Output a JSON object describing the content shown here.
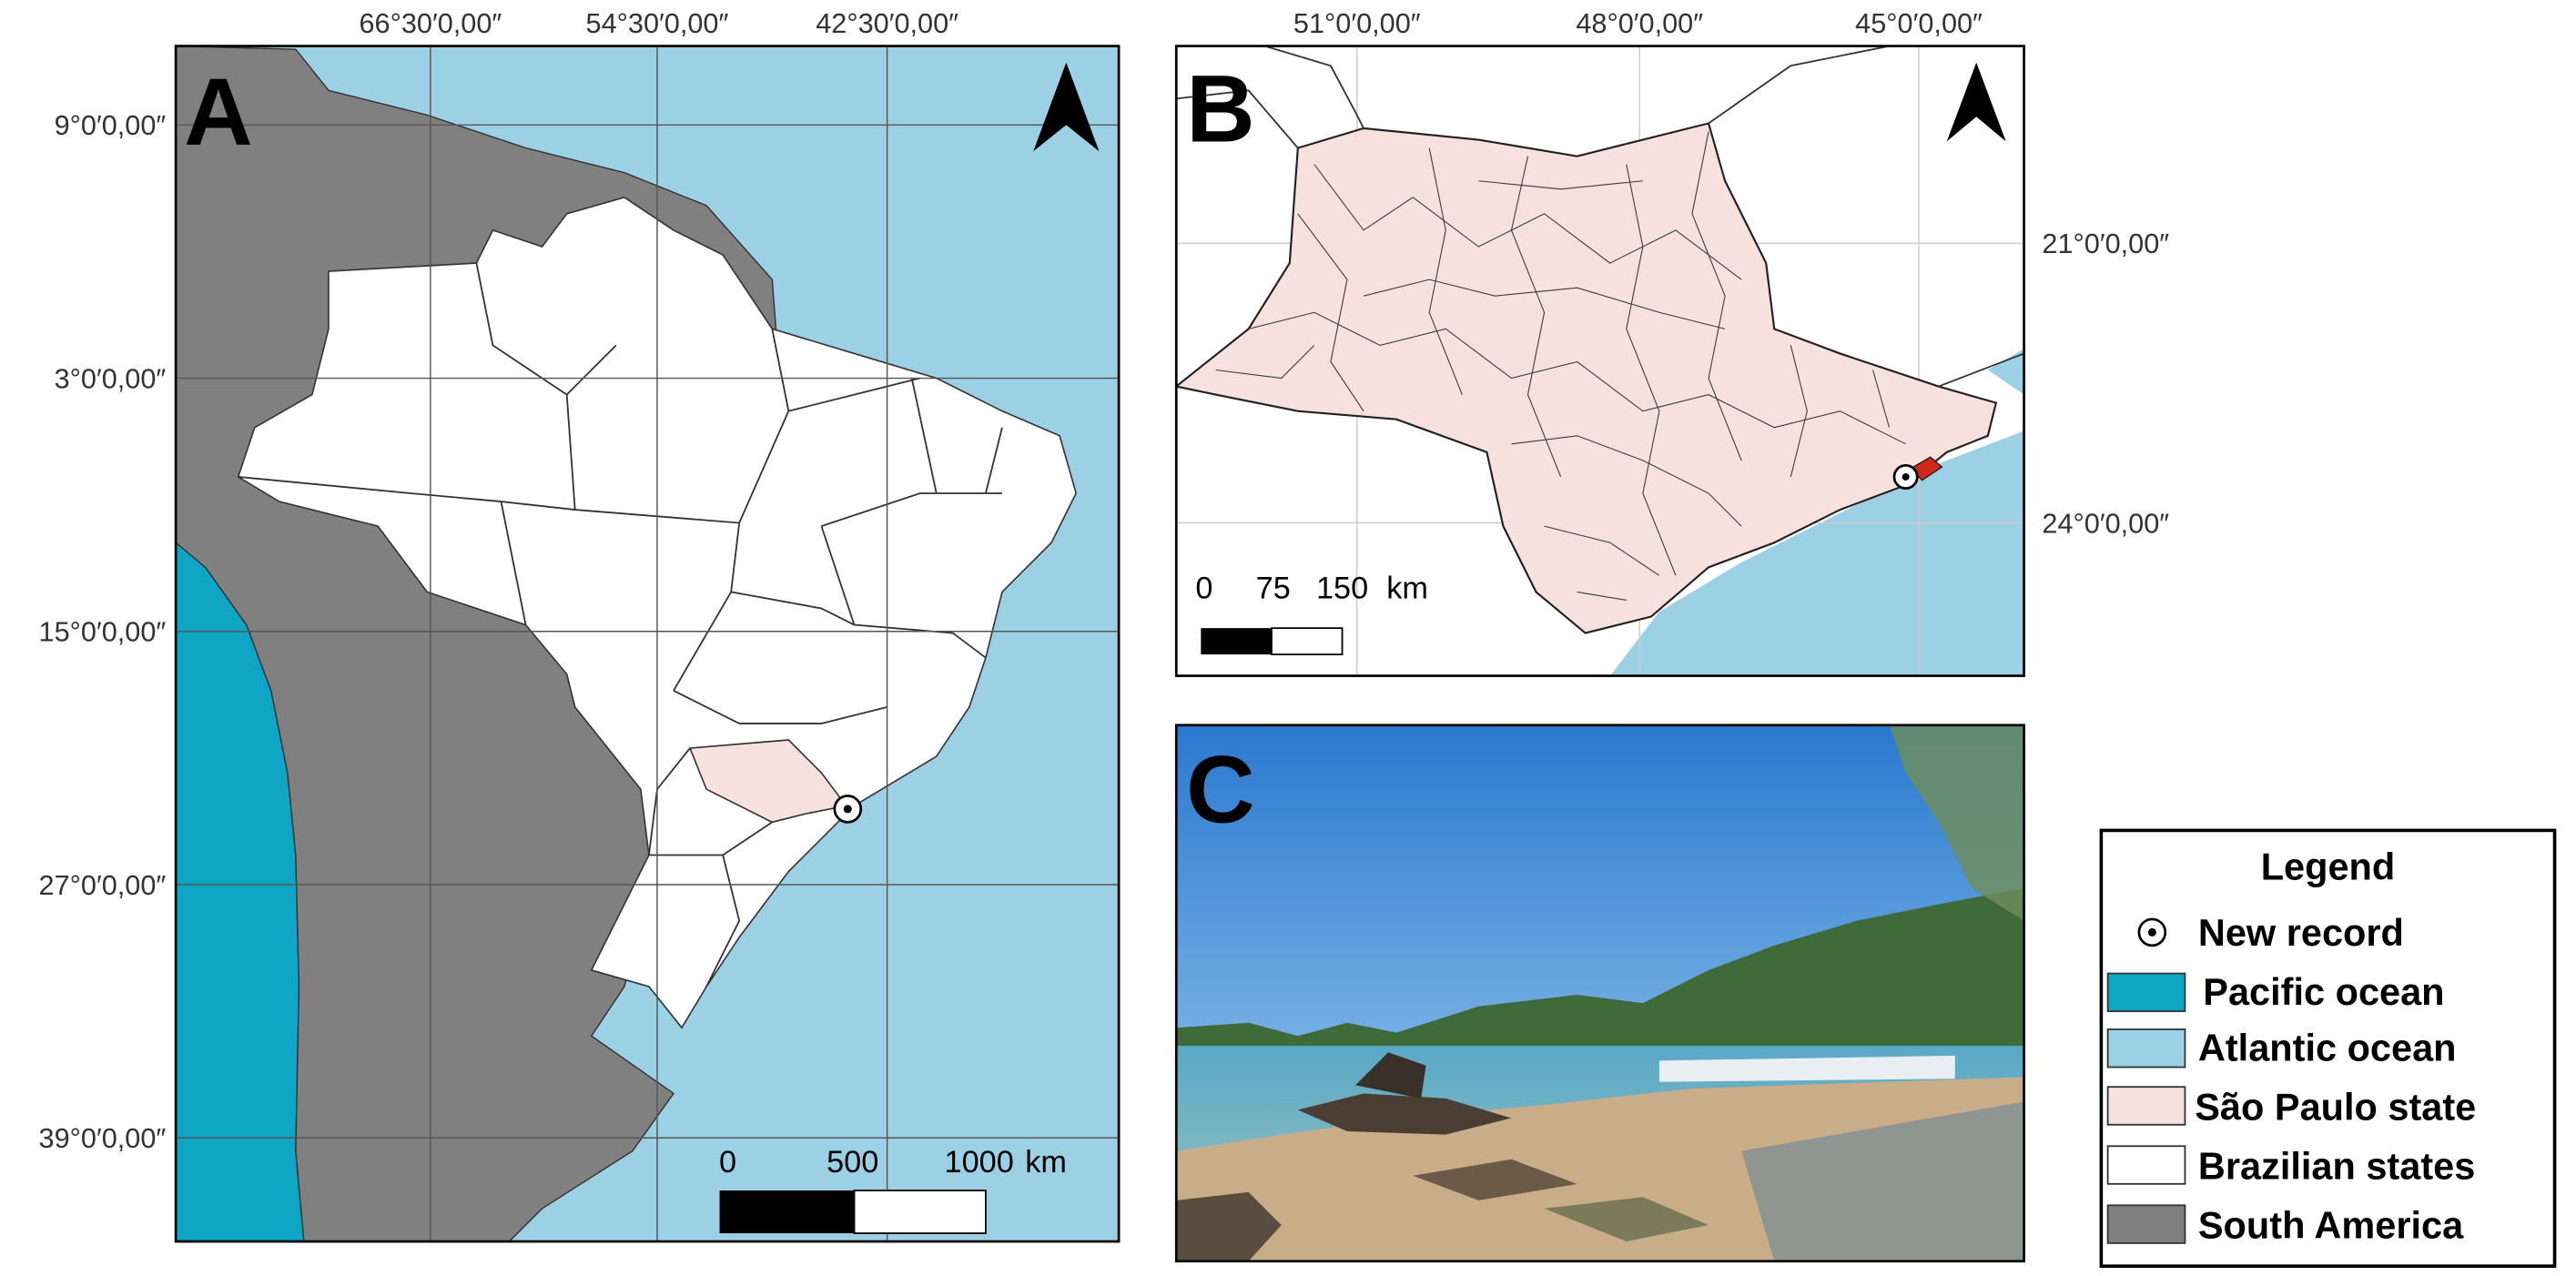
{
  "panel_a": {
    "label": "A",
    "x_labels": [
      "66°30′0,00″",
      "54°30′0,00″",
      "42°30′0,00″"
    ],
    "y_labels": [
      "9°0′0,00″",
      "3°0′0,00″",
      "15°0′0,00″",
      "27°0′0,00″",
      "39°0′0,00″"
    ],
    "scale_labels": [
      "0",
      "500",
      "1000"
    ],
    "scale_unit": "km"
  },
  "panel_b": {
    "label": "B",
    "x_labels": [
      "51°0′0,00″",
      "48°0′0,00″",
      "45°0′0,00″"
    ],
    "y_labels": [
      "21°0′0,00″",
      "24°0′0,00″"
    ],
    "scale_labels": [
      "0",
      "75",
      "150"
    ],
    "scale_unit": "km"
  },
  "panel_c": {
    "label": "C"
  },
  "legend": {
    "title": "Legend",
    "items": [
      "New record",
      "Pacific ocean",
      "Atlantic ocean",
      "São Paulo state",
      "Brazilian states",
      "South America"
    ]
  }
}
